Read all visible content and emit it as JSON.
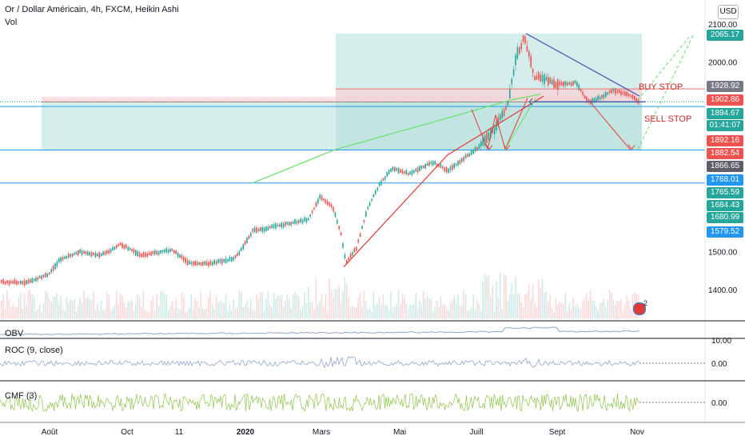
{
  "header": {
    "title": "Or / Dollar Américain, 4h, FXCM, Heikin Ashi",
    "indicator": "Vol",
    "currency": "USD"
  },
  "colors": {
    "bull": "#26a69a",
    "bear": "#ef5350",
    "box_green": "#b2dfdb",
    "box_red": "#ffcdd2",
    "hline_blue": "#2196f3",
    "trend_green": "#66e06a",
    "trend_red": "#e53935",
    "trend_blue": "#3f51b5",
    "obv": "#8fa8c8",
    "roc": "#8fa8c8",
    "cmf": "#8bc34a"
  },
  "annotations": {
    "buy_stop": "BUY STOP",
    "sell_stop": "SELL STOP",
    "badge": "2"
  },
  "price_labels": [
    {
      "value": "2065.17",
      "bg": "#26a69a"
    },
    {
      "value": "1928.92",
      "bg": "#787b86"
    },
    {
      "value": "1902.86",
      "bg": "#ef5350"
    },
    {
      "value": "1894.67",
      "bg": "#26a69a"
    },
    {
      "value": "01:41:07",
      "bg": "#26a69a"
    },
    {
      "value": "1892.16",
      "bg": "#ef5350"
    },
    {
      "value": "1882.54",
      "bg": "#ef5350"
    },
    {
      "value": "1866.65",
      "bg": "#5d606b"
    },
    {
      "value": "1768.01",
      "bg": "#2196f3"
    },
    {
      "value": "1765.59",
      "bg": "#26a69a"
    },
    {
      "value": "1684.43",
      "bg": "#26a69a"
    },
    {
      "value": "1680.99",
      "bg": "#26a69a"
    },
    {
      "value": "1579.52",
      "bg": "#2196f3"
    }
  ],
  "panes": {
    "obv": "OBV",
    "roc": "ROC (9, close)",
    "cmf": "CMF (3)"
  },
  "chart_data": {
    "type": "candlestick",
    "ylim": [
      1330,
      2110
    ],
    "y_ticks": [
      "2100.00",
      "2000.00",
      "1500.00",
      "1400.00"
    ],
    "x_labels": [
      "Août",
      "Oct",
      "11",
      "2020",
      "Mars",
      "Mai",
      "Juill",
      "Sept",
      "Nov"
    ],
    "roc_ticks": [
      "10.00",
      "0.00"
    ],
    "cmf_ticks": [
      "0.00"
    ],
    "series": [
      {
        "name": "Heikin Ashi",
        "anchors": [
          [
            0,
            1420
          ],
          [
            30,
            1418
          ],
          [
            60,
            1440
          ],
          [
            75,
            1480
          ],
          [
            100,
            1500
          ],
          [
            125,
            1490
          ],
          [
            150,
            1520
          ],
          [
            175,
            1490
          ],
          [
            215,
            1505
          ],
          [
            235,
            1470
          ],
          [
            260,
            1468
          ],
          [
            290,
            1480
          ],
          [
            300,
            1500
          ],
          [
            315,
            1555
          ],
          [
            330,
            1560
          ],
          [
            360,
            1575
          ],
          [
            385,
            1585
          ],
          [
            400,
            1645
          ],
          [
            415,
            1620
          ],
          [
            425,
            1555
          ],
          [
            432,
            1470
          ],
          [
            445,
            1510
          ],
          [
            460,
            1620
          ],
          [
            475,
            1680
          ],
          [
            490,
            1720
          ],
          [
            510,
            1705
          ],
          [
            540,
            1735
          ],
          [
            560,
            1715
          ],
          [
            580,
            1745
          ],
          [
            600,
            1780
          ],
          [
            620,
            1830
          ],
          [
            635,
            1890
          ],
          [
            645,
            2015
          ],
          [
            655,
            2065
          ],
          [
            660,
            2030
          ],
          [
            668,
            1960
          ],
          [
            680,
            1955
          ],
          [
            700,
            1940
          ],
          [
            720,
            1945
          ],
          [
            735,
            1895
          ],
          [
            745,
            1900
          ],
          [
            765,
            1925
          ],
          [
            785,
            1915
          ],
          [
            798,
            1895
          ]
        ]
      }
    ],
    "horizontal_levels": [
      1928.92,
      1895,
      1882.54,
      1768.01,
      1680.99
    ],
    "zones": [
      {
        "kind": "green",
        "from": 1768.01,
        "to": 2075,
        "x": [
          420,
          803
        ]
      },
      {
        "kind": "red",
        "from": 1902.86,
        "to": 1928.92,
        "x": [
          420,
          803
        ]
      },
      {
        "kind": "red",
        "from": 1894.67,
        "to": 1908,
        "x": [
          52,
          803
        ]
      },
      {
        "kind": "green",
        "from": 1768.01,
        "to": 1894.67,
        "x": [
          52,
          803
        ]
      }
    ]
  }
}
